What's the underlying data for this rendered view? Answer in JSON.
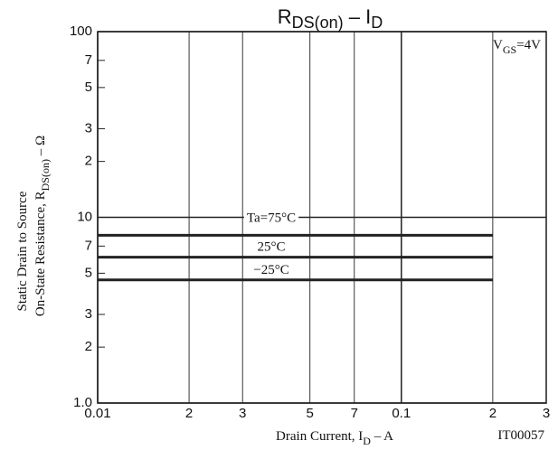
{
  "chart_data": {
    "type": "line",
    "title": [
      "R",
      "DS(on)",
      " – I",
      "D"
    ],
    "xlabel": [
      "Drain Current, I",
      "D",
      "  –  A"
    ],
    "ylabel": [
      "Static Drain to Source",
      [
        "On-State Resistance, R",
        "DS(on)",
        "  –  Ω"
      ]
    ],
    "annotation": [
      "V",
      "GS",
      "=4V"
    ],
    "figure_code": "IT00057",
    "x": [
      0.01,
      0.2
    ],
    "series": [
      {
        "name": "Ta=75°C",
        "color": "#222222",
        "values": [
          8,
          8
        ]
      },
      {
        "name": "25°C",
        "color": "#222222",
        "values": [
          6.1,
          6.1
        ]
      },
      {
        "name": "−25°C",
        "color": "#222222",
        "values": [
          4.6,
          4.6
        ]
      }
    ],
    "xlim": [
      0.01,
      0.3
    ],
    "ylim": [
      1,
      100
    ],
    "log_x": true,
    "log_y": true,
    "grid": true,
    "xticks": [
      {
        "value": 0.01,
        "label": "0.01"
      },
      {
        "value": 0.02,
        "label": "2"
      },
      {
        "value": 0.03,
        "label": "3"
      },
      {
        "value": 0.05,
        "label": "5"
      },
      {
        "value": 0.07,
        "label": "7"
      },
      {
        "value": 0.1,
        "label": "0.1"
      },
      {
        "value": 0.2,
        "label": "2"
      },
      {
        "value": 0.3,
        "label": "3"
      }
    ],
    "yticks": [
      {
        "value": 1,
        "label": "1.0"
      },
      2,
      3,
      5,
      7,
      10,
      {
        "value": 20,
        "label": "2"
      },
      {
        "value": 30,
        "label": "3"
      },
      {
        "value": 50,
        "label": "5"
      },
      {
        "value": 70,
        "label": "7"
      },
      100
    ]
  }
}
